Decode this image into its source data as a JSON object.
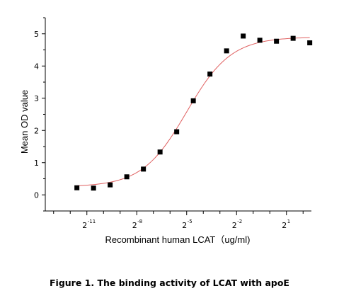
{
  "caption": "Figure 1. The binding activity of LCAT with apoE",
  "chart_data": {
    "type": "scatter",
    "xlabel": "Recombinant human LCAT（ug/ml)",
    "ylabel": "Mean OD value",
    "x_scale": "log2",
    "xlim": [
      -13.5,
      2.5
    ],
    "ylim": [
      -0.5,
      5.5
    ],
    "x_ticks": [
      {
        "base": "2",
        "exp": "-11",
        "value": -11
      },
      {
        "base": "2",
        "exp": "-8",
        "value": -8
      },
      {
        "base": "2",
        "exp": "-5",
        "value": -5
      },
      {
        "base": "2",
        "exp": "-2",
        "value": -2
      },
      {
        "base": "2",
        "exp": "1",
        "value": 1
      }
    ],
    "y_ticks": [
      0,
      1,
      2,
      3,
      4,
      5
    ],
    "series": [
      {
        "marker": "square",
        "color": "#000000",
        "x": [
          -11.6,
          -10.6,
          -9.6,
          -8.6,
          -7.6,
          -6.6,
          -5.6,
          -4.6,
          -3.6,
          -2.6,
          -1.6,
          -0.6,
          0.4,
          1.4,
          2.4
        ],
        "y": [
          0.22,
          0.21,
          0.31,
          0.56,
          0.8,
          1.33,
          1.96,
          2.92,
          3.75,
          4.47,
          4.93,
          4.8,
          4.77,
          4.86,
          4.72
        ]
      }
    ],
    "fit_curve": {
      "model": "4PL",
      "color": "#e06060",
      "bottom": 0.25,
      "top": 4.9,
      "mid": -5.0,
      "slope": 0.75,
      "x_range": [
        -11.6,
        2.4
      ]
    },
    "grid": false,
    "legend": "none"
  }
}
